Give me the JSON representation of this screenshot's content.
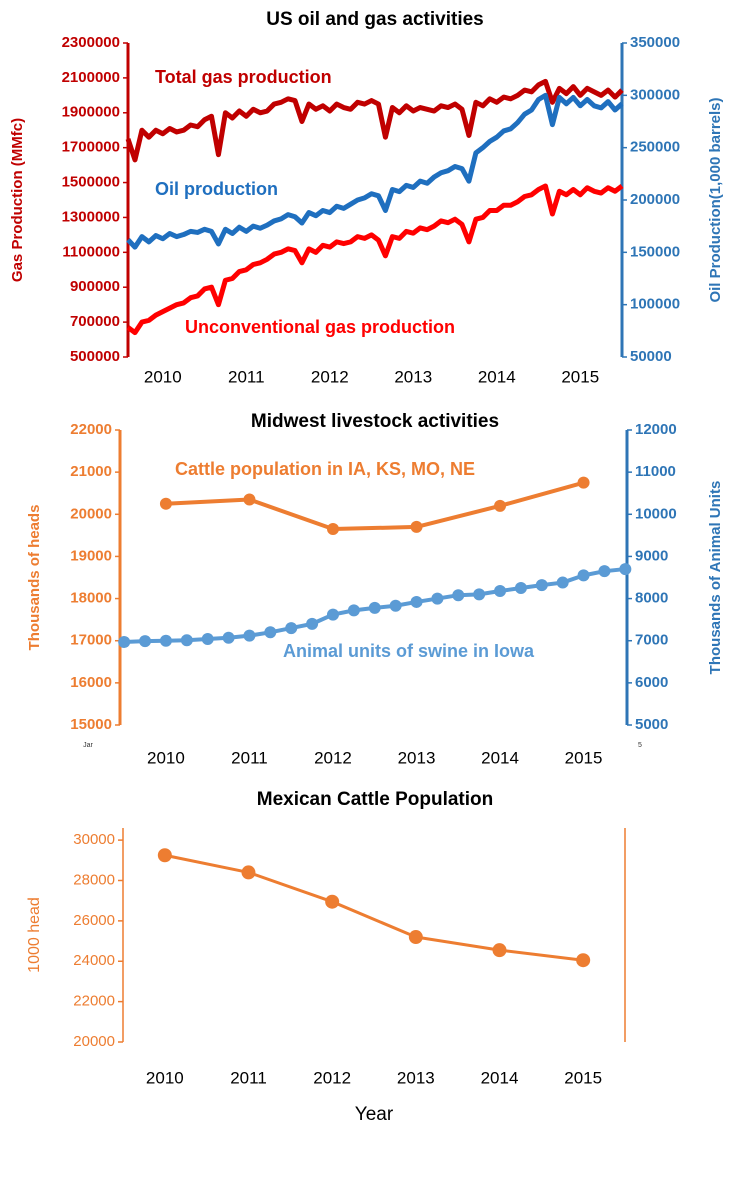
{
  "chart_data": [
    {
      "type": "line",
      "title": "US oil and gas activities",
      "ylabel": "Gas Production (MMfc)",
      "y2label": "Oil Production(1,000 barrels)",
      "y_axis_color": "#c00000",
      "y2_axis_color": "#2e75b6",
      "markers": false,
      "ylim": [
        500000,
        2300000
      ],
      "yticks": [
        500000,
        700000,
        900000,
        1100000,
        1300000,
        1500000,
        1700000,
        1900000,
        2100000,
        2300000
      ],
      "y2lim": [
        50000,
        350000
      ],
      "y2ticks": [
        50000,
        100000,
        150000,
        200000,
        250000,
        300000,
        350000
      ],
      "categories": [
        null,
        null,
        null,
        null,
        null,
        "2010",
        null,
        null,
        null,
        null,
        null,
        null,
        null,
        null,
        null,
        null,
        null,
        "2011",
        null,
        null,
        null,
        null,
        null,
        null,
        null,
        null,
        null,
        null,
        null,
        "2012",
        null,
        null,
        null,
        null,
        null,
        null,
        null,
        null,
        null,
        null,
        null,
        "2013",
        null,
        null,
        null,
        null,
        null,
        null,
        null,
        null,
        null,
        null,
        null,
        "2014",
        null,
        null,
        null,
        null,
        null,
        null,
        null,
        null,
        null,
        null,
        null,
        "2015",
        null,
        null,
        null,
        null,
        null,
        null
      ],
      "series": [
        {
          "name": "Total gas production",
          "color": "#c00000",
          "values": [
            1750000,
            1630000,
            1800000,
            1760000,
            1800000,
            1780000,
            1810000,
            1790000,
            1800000,
            1830000,
            1820000,
            1860000,
            1880000,
            1660000,
            1900000,
            1870000,
            1910000,
            1880000,
            1920000,
            1900000,
            1910000,
            1950000,
            1960000,
            1980000,
            1970000,
            1850000,
            1950000,
            1920000,
            1940000,
            1910000,
            1950000,
            1930000,
            1920000,
            1960000,
            1950000,
            1970000,
            1950000,
            1760000,
            1930000,
            1900000,
            1940000,
            1910000,
            1930000,
            1920000,
            1910000,
            1940000,
            1930000,
            1950000,
            1920000,
            1770000,
            1960000,
            1940000,
            1980000,
            1960000,
            1990000,
            1980000,
            2000000,
            2030000,
            2020000,
            2060000,
            2080000,
            1960000,
            2040000,
            2010000,
            2050000,
            2000000,
            2040000,
            2020000,
            2000000,
            2030000,
            1990000,
            2030000
          ]
        },
        {
          "name": "Oil production",
          "color": "#1f6fbf",
          "axis": "y2",
          "values": [
            162000,
            155000,
            165000,
            160000,
            166000,
            163000,
            168000,
            165000,
            167000,
            170000,
            169000,
            172000,
            170000,
            158000,
            172000,
            168000,
            174000,
            170000,
            175000,
            173000,
            176000,
            180000,
            182000,
            186000,
            184000,
            178000,
            188000,
            185000,
            190000,
            188000,
            194000,
            192000,
            196000,
            200000,
            202000,
            206000,
            204000,
            190000,
            210000,
            208000,
            214000,
            212000,
            218000,
            216000,
            222000,
            226000,
            228000,
            232000,
            230000,
            218000,
            245000,
            250000,
            256000,
            260000,
            266000,
            268000,
            274000,
            282000,
            286000,
            296000,
            300000,
            272000,
            298000,
            292000,
            298000,
            290000,
            296000,
            290000,
            288000,
            294000,
            286000,
            292000
          ]
        },
        {
          "name": "Unconventional gas production",
          "color": "#ff0000",
          "values": [
            670000,
            640000,
            700000,
            710000,
            740000,
            760000,
            780000,
            800000,
            810000,
            840000,
            850000,
            890000,
            900000,
            800000,
            940000,
            950000,
            990000,
            1000000,
            1030000,
            1040000,
            1060000,
            1090000,
            1100000,
            1120000,
            1110000,
            1040000,
            1120000,
            1100000,
            1140000,
            1130000,
            1160000,
            1150000,
            1160000,
            1190000,
            1180000,
            1200000,
            1170000,
            1080000,
            1190000,
            1180000,
            1220000,
            1210000,
            1240000,
            1230000,
            1250000,
            1280000,
            1270000,
            1290000,
            1260000,
            1160000,
            1290000,
            1300000,
            1340000,
            1340000,
            1370000,
            1370000,
            1390000,
            1420000,
            1430000,
            1460000,
            1480000,
            1320000,
            1450000,
            1430000,
            1460000,
            1430000,
            1470000,
            1450000,
            1440000,
            1470000,
            1450000,
            1480000
          ]
        }
      ]
    },
    {
      "type": "line",
      "title": "Midwest livestock activities",
      "ylabel": "Thousands of heads",
      "y2label": "Thousands of  Animal Units",
      "y_axis_color": "#ed7d31",
      "y2_axis_color": "#2e75b6",
      "markers": true,
      "ylim": [
        15000,
        22000
      ],
      "yticks": [
        15000,
        16000,
        17000,
        18000,
        19000,
        20000,
        21000,
        22000
      ],
      "y2lim": [
        5000,
        12000
      ],
      "y2ticks": [
        5000,
        6000,
        7000,
        8000,
        9000,
        10000,
        11000,
        12000
      ],
      "xlim": [
        2009.45,
        2015.52
      ],
      "xticks": [
        2010,
        2011,
        2012,
        2013,
        2014,
        2015
      ],
      "corner_labels": [
        "Jar",
        "5"
      ],
      "series": [
        {
          "name": "Cattle population in IA, KS, MO, NE",
          "color": "#ed7d31",
          "x": [
            2010,
            2011,
            2012,
            2013,
            2014,
            2015
          ],
          "values": [
            20250,
            20350,
            19650,
            19700,
            20200,
            20750
          ]
        },
        {
          "name": "Animal units of swine in Iowa",
          "color": "#5b9bd5",
          "axis": "y2",
          "x": [
            2009.5,
            2009.75,
            2010,
            2010.25,
            2010.5,
            2010.75,
            2011,
            2011.25,
            2011.5,
            2011.75,
            2012,
            2012.25,
            2012.5,
            2012.75,
            2013,
            2013.25,
            2013.5,
            2013.75,
            2014,
            2014.25,
            2014.5,
            2014.75,
            2015,
            2015.25,
            2015.5
          ],
          "values": [
            6970,
            6990,
            7000,
            7010,
            7040,
            7070,
            7120,
            7200,
            7300,
            7400,
            7620,
            7720,
            7780,
            7830,
            7920,
            8000,
            8080,
            8100,
            8180,
            8250,
            8320,
            8380,
            8550,
            8650,
            8700
          ]
        }
      ]
    },
    {
      "type": "line",
      "title": "Mexican Cattle Population",
      "ylabel": "1000 head",
      "xlabel": "Year",
      "y_axis_color": "#ed7d31",
      "markers": true,
      "frame": true,
      "ylim": [
        20000,
        30600
      ],
      "yticks": [
        20000,
        22000,
        24000,
        26000,
        28000,
        30000
      ],
      "categories": [
        "2010",
        "2011",
        "2012",
        "2013",
        "2014",
        "2015"
      ],
      "series": [
        {
          "color": "#ed7d31",
          "values": [
            29250,
            28400,
            26950,
            25200,
            24550,
            24050
          ]
        }
      ]
    }
  ]
}
